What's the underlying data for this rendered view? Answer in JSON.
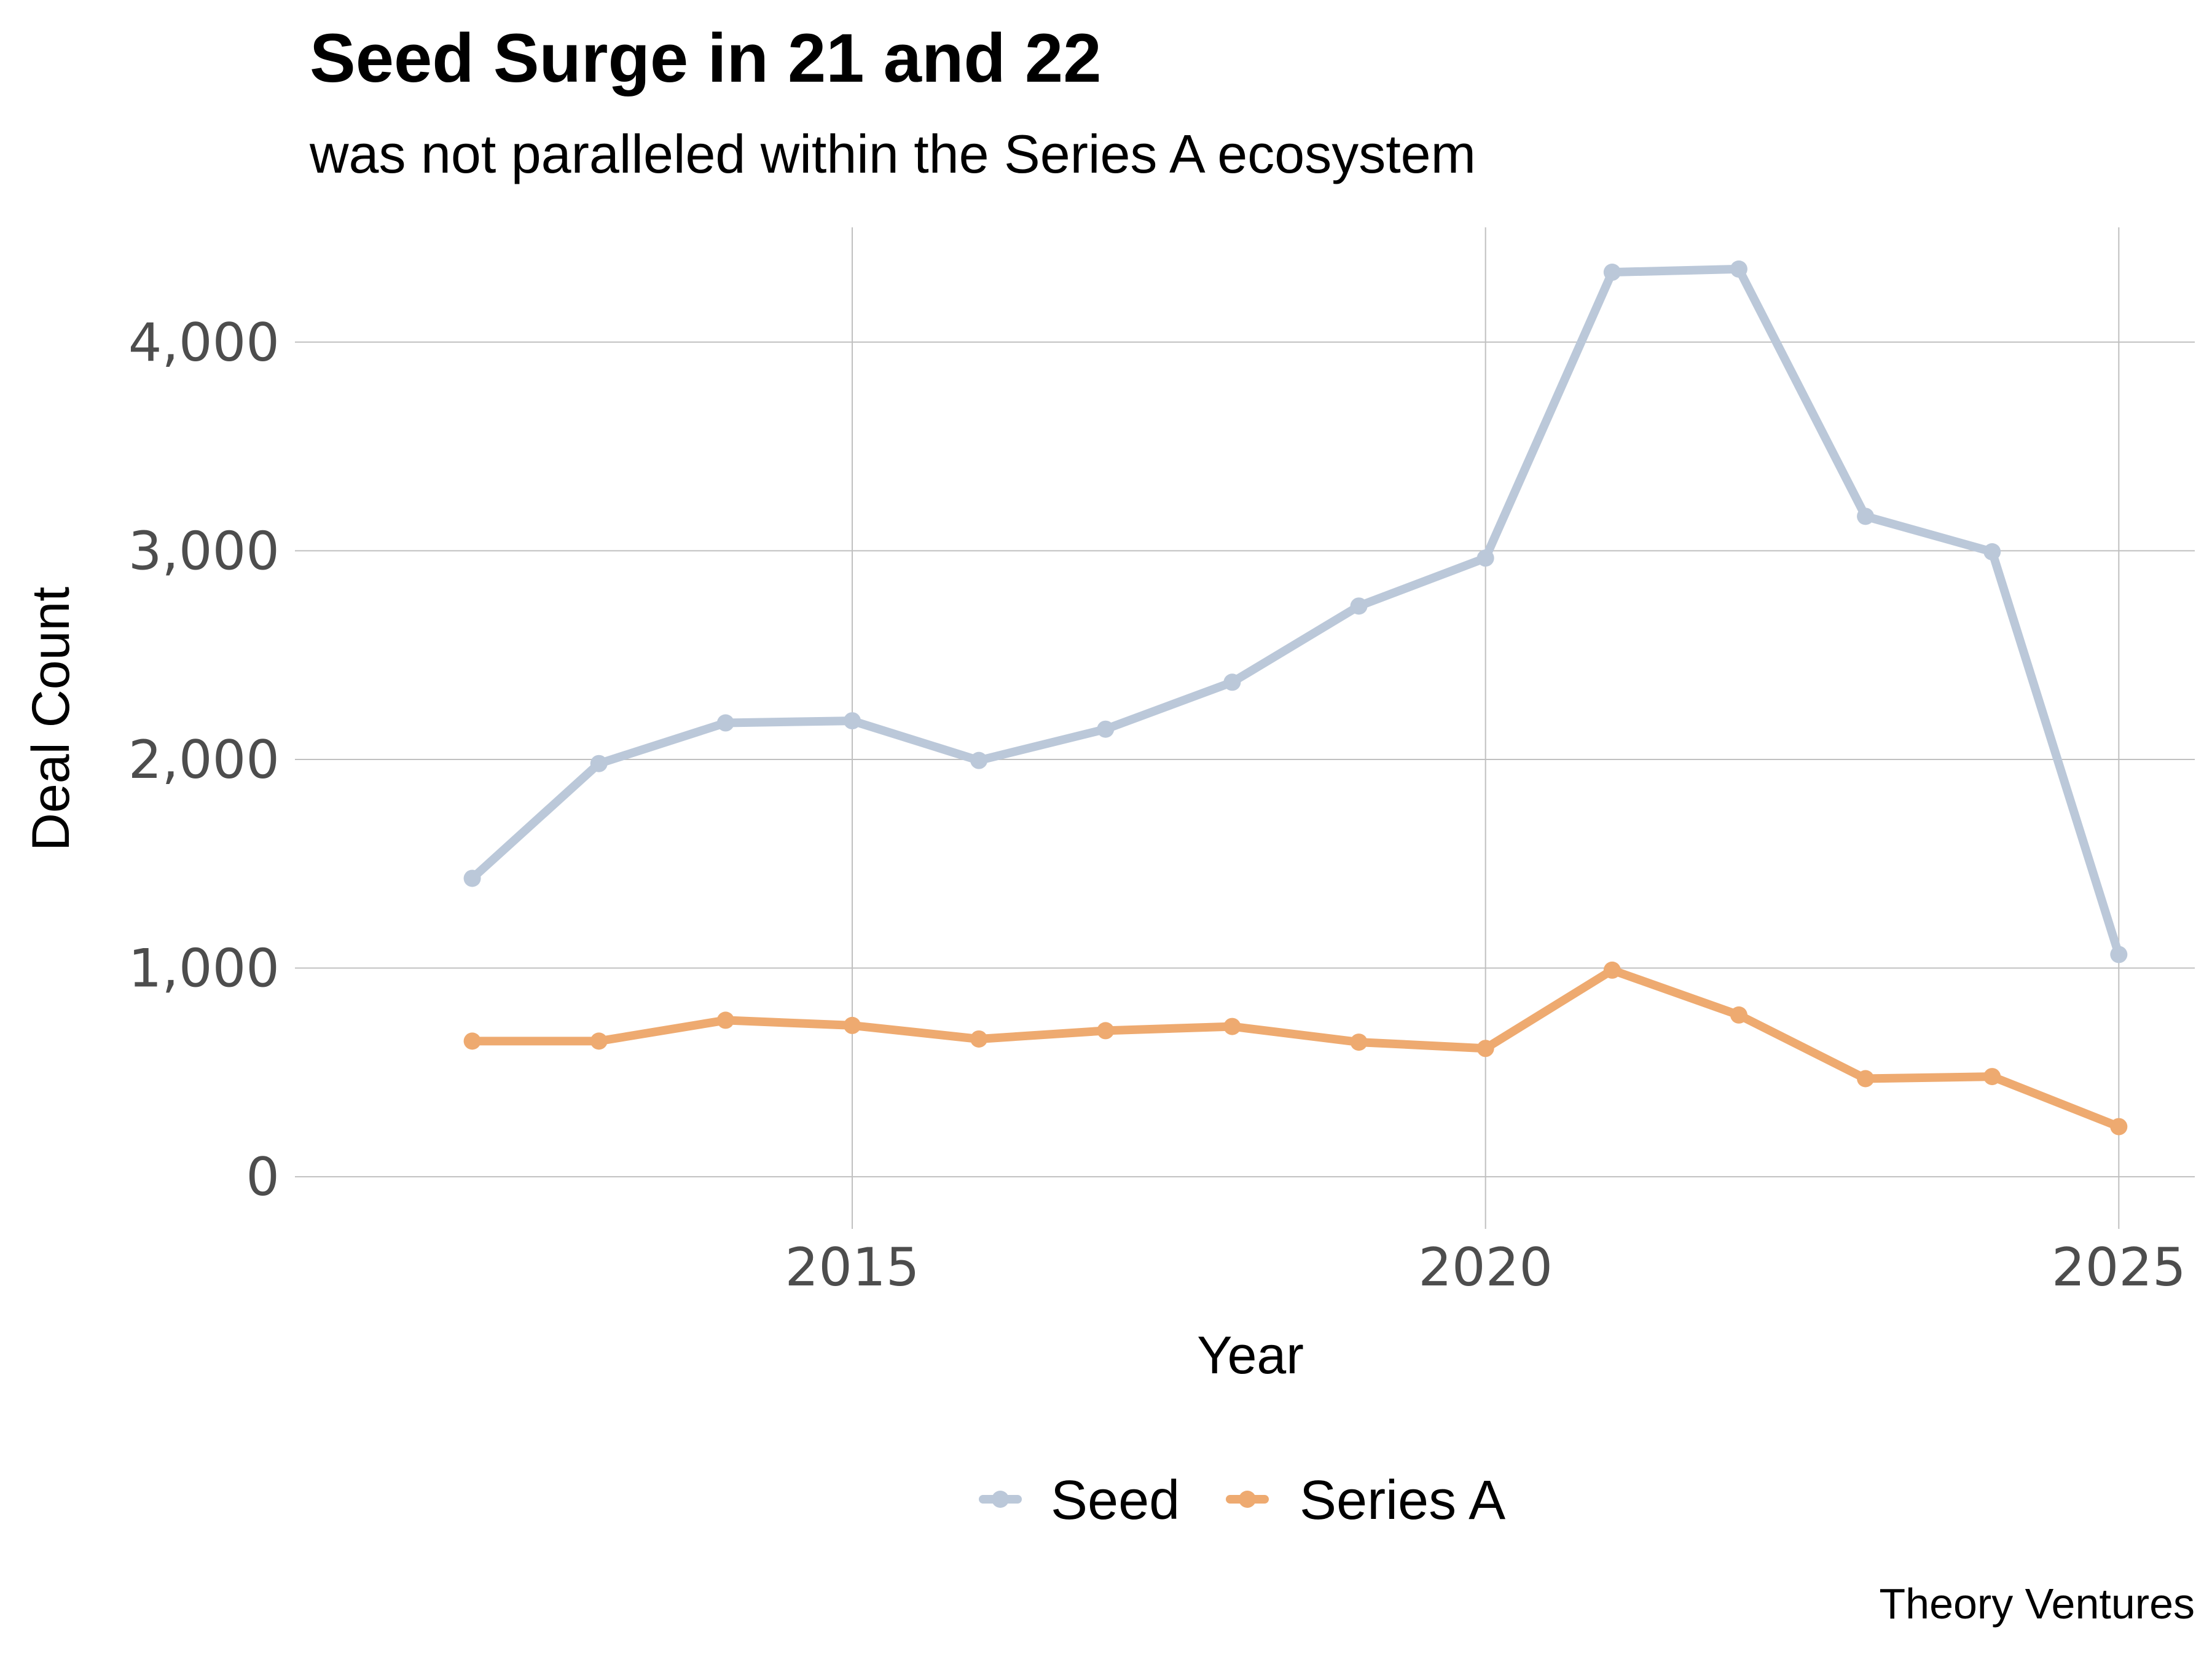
{
  "chart_data": {
    "type": "line",
    "title": "Seed Surge in 21 and 22",
    "subtitle": "was not paralleled within the Series A ecosystem",
    "xlabel": "Year",
    "ylabel": "Deal Count",
    "caption": "Theory Ventures",
    "x": [
      2012,
      2013,
      2014,
      2015,
      2016,
      2017,
      2018,
      2019,
      2020,
      2021,
      2022,
      2023,
      2024,
      2025
    ],
    "xlim": [
      2010.6,
      2025.6
    ],
    "ylim": [
      -250,
      4550
    ],
    "x_ticks": [
      2015,
      2020,
      2025
    ],
    "x_tick_labels": [
      "2015",
      "2020",
      "2025"
    ],
    "y_ticks": [
      0,
      1000,
      2000,
      3000,
      4000
    ],
    "y_tick_labels": [
      "0",
      "1,000",
      "2,000",
      "3,000",
      "4,000"
    ],
    "grid": true,
    "legend_position": "bottom",
    "series": [
      {
        "name": "Seed",
        "color": "#bbc8d9",
        "values": [
          1430,
          1980,
          2175,
          2185,
          1995,
          2145,
          2370,
          2735,
          2965,
          4335,
          4350,
          3165,
          2995,
          1065
        ]
      },
      {
        "name": "Series A",
        "color": "#eeaa70",
        "values": [
          650,
          650,
          750,
          725,
          660,
          700,
          720,
          645,
          615,
          990,
          775,
          470,
          480,
          240
        ]
      }
    ]
  }
}
